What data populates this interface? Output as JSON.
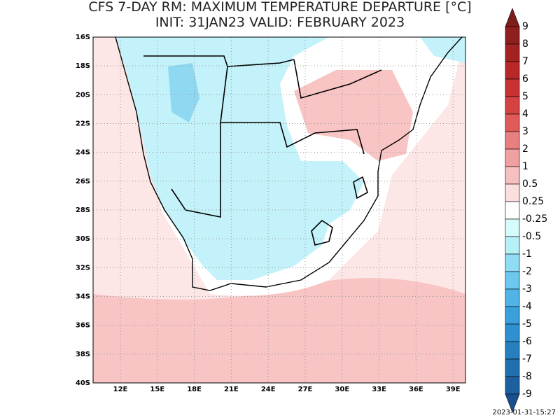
{
  "title": [
    "CFS 7-DAY RM: MAXIMUM TEMPERATURE DEPARTURE [°C]",
    "INIT: 31JAN23 VALID: FEBRUARY 2023"
  ],
  "lat_labels": [
    "16S",
    "18S",
    "20S",
    "22S",
    "24S",
    "26S",
    "28S",
    "30S",
    "32S",
    "34S",
    "36S",
    "38S",
    "40S"
  ],
  "lon_labels": [
    "12E",
    "15E",
    "18E",
    "21E",
    "24E",
    "27E",
    "30E",
    "33E",
    "36E",
    "39E"
  ],
  "colorbar": {
    "labels": [
      "9",
      "8",
      "7",
      "6",
      "5",
      "4",
      "3",
      "2",
      "1",
      "0.5",
      "0.25",
      "-0.25",
      "-0.5",
      "-1",
      "-2",
      "-3",
      "-4",
      "-5",
      "-6",
      "-7",
      "-8",
      "-9"
    ],
    "colors": [
      "#7f1d1d",
      "#8f1e1e",
      "#a52222",
      "#b82828",
      "#c93232",
      "#d64242",
      "#e05a5a",
      "#e88080",
      "#f0a0a0",
      "#f6c0c0",
      "#fbdede",
      "#ffffff",
      "#d6fbfb",
      "#b8f0f8",
      "#90dcf5",
      "#6cc8ee",
      "#50b4e6",
      "#3aa0dc",
      "#2e90d0",
      "#2680c0",
      "#2070b0",
      "#1c60a0",
      "#1a5090"
    ]
  },
  "timestamp": "2023-01-31-15:27"
}
